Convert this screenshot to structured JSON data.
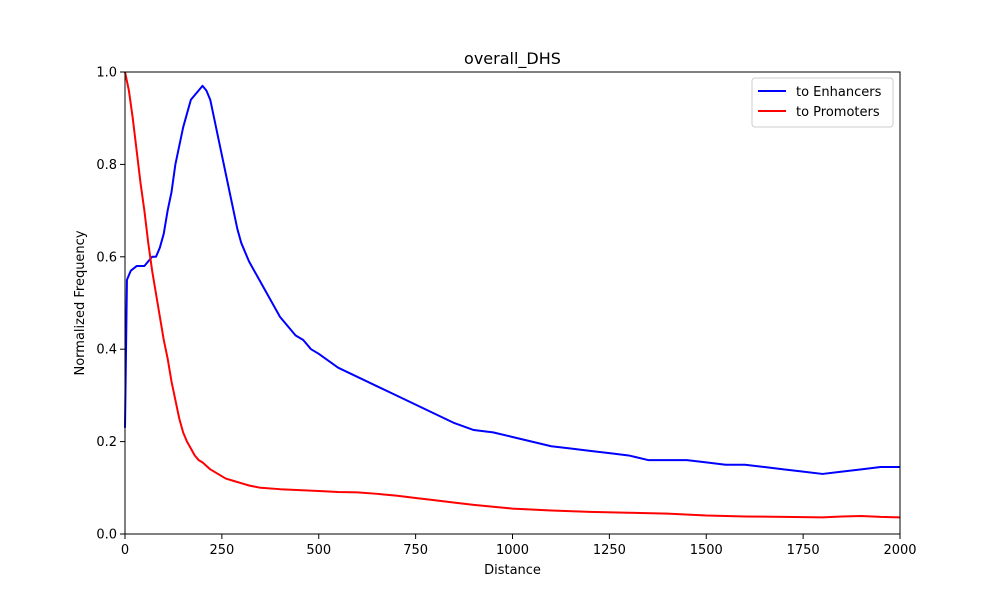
{
  "chart_data": {
    "type": "line",
    "title": "overall_DHS",
    "xlabel": "Distance",
    "ylabel": "Normalized Frequency",
    "xlim": [
      0,
      2000
    ],
    "ylim": [
      0,
      1.0
    ],
    "xticks": [
      0,
      250,
      500,
      750,
      1000,
      1250,
      1500,
      1750,
      2000
    ],
    "yticks": [
      "0.0",
      "0.2",
      "0.4",
      "0.6",
      "0.8",
      "1.0"
    ],
    "grid": false,
    "legend_position": "top-right",
    "series": [
      {
        "name": "to Enhancers",
        "color": "#0000ff",
        "x": [
          0,
          5,
          15,
          30,
          50,
          60,
          70,
          80,
          90,
          100,
          110,
          120,
          130,
          140,
          150,
          160,
          170,
          180,
          190,
          200,
          210,
          220,
          230,
          240,
          250,
          260,
          270,
          280,
          290,
          300,
          320,
          340,
          360,
          380,
          400,
          420,
          440,
          460,
          480,
          500,
          550,
          600,
          650,
          700,
          750,
          800,
          850,
          900,
          950,
          1000,
          1050,
          1100,
          1150,
          1200,
          1250,
          1300,
          1350,
          1400,
          1450,
          1500,
          1550,
          1600,
          1650,
          1700,
          1750,
          1800,
          1850,
          1900,
          1950,
          2000
        ],
        "y": [
          0.23,
          0.55,
          0.57,
          0.58,
          0.58,
          0.59,
          0.6,
          0.6,
          0.62,
          0.65,
          0.7,
          0.74,
          0.8,
          0.84,
          0.88,
          0.91,
          0.94,
          0.95,
          0.96,
          0.97,
          0.96,
          0.94,
          0.9,
          0.86,
          0.82,
          0.78,
          0.74,
          0.7,
          0.66,
          0.63,
          0.59,
          0.56,
          0.53,
          0.5,
          0.47,
          0.45,
          0.43,
          0.42,
          0.4,
          0.39,
          0.36,
          0.34,
          0.32,
          0.3,
          0.28,
          0.26,
          0.24,
          0.225,
          0.22,
          0.21,
          0.2,
          0.19,
          0.185,
          0.18,
          0.175,
          0.17,
          0.16,
          0.16,
          0.16,
          0.155,
          0.15,
          0.15,
          0.145,
          0.14,
          0.135,
          0.13,
          0.135,
          0.14,
          0.145,
          0.145
        ]
      },
      {
        "name": "to Promoters",
        "color": "#ff0000",
        "x": [
          0,
          10,
          20,
          30,
          40,
          50,
          60,
          70,
          80,
          90,
          100,
          110,
          120,
          130,
          140,
          150,
          160,
          170,
          180,
          190,
          200,
          220,
          240,
          260,
          280,
          300,
          320,
          350,
          400,
          450,
          500,
          550,
          600,
          650,
          700,
          750,
          800,
          850,
          900,
          950,
          1000,
          1100,
          1200,
          1300,
          1400,
          1500,
          1600,
          1700,
          1800,
          1850,
          1900,
          1950,
          2000
        ],
        "y": [
          1.0,
          0.96,
          0.9,
          0.83,
          0.76,
          0.7,
          0.63,
          0.57,
          0.52,
          0.47,
          0.42,
          0.38,
          0.33,
          0.29,
          0.25,
          0.22,
          0.2,
          0.185,
          0.17,
          0.16,
          0.155,
          0.14,
          0.13,
          0.12,
          0.115,
          0.11,
          0.105,
          0.1,
          0.097,
          0.095,
          0.093,
          0.091,
          0.09,
          0.087,
          0.083,
          0.078,
          0.073,
          0.068,
          0.063,
          0.059,
          0.055,
          0.051,
          0.048,
          0.046,
          0.044,
          0.04,
          0.038,
          0.037,
          0.036,
          0.038,
          0.039,
          0.037,
          0.036
        ]
      }
    ]
  }
}
